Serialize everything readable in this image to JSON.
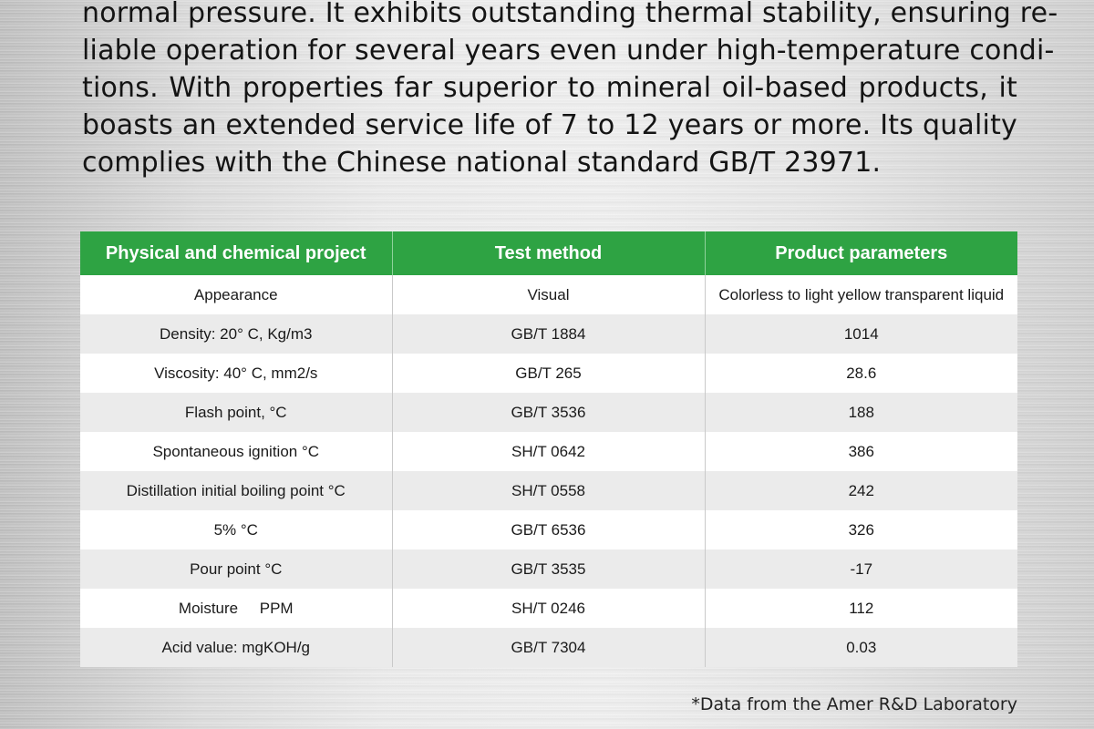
{
  "intro": {
    "lines": [
      "normal pressure. It exhibits outstanding thermal stability, ensuring re-",
      "liable operation for several years even under high-temperature condi-",
      "tions. With properties far superior to mineral oil-based products, it",
      "boasts an extended service life of 7 to 12 years or more. Its quality",
      "complies with the Chinese national standard GB/T 23971."
    ]
  },
  "table": {
    "header_color": "#2ea343",
    "headers": [
      "Physical and chemical project",
      "Test method",
      "Product parameters"
    ],
    "rows": [
      [
        "Appearance",
        "Visual",
        "Colorless to light yellow transparent liquid"
      ],
      [
        "Density: 20° C, Kg/m3",
        "GB/T 1884",
        "1014"
      ],
      [
        "Viscosity: 40° C, mm2/s",
        "GB/T 265",
        "28.6"
      ],
      [
        "Flash point, °C",
        "GB/T 3536",
        "188"
      ],
      [
        "Spontaneous ignition °C",
        "SH/T 0642",
        "386"
      ],
      [
        "Distillation initial boiling point °C",
        "SH/T 0558",
        "242"
      ],
      [
        "5% °C",
        "GB/T 6536",
        "326"
      ],
      [
        "Pour point °C",
        "GB/T 3535",
        "-17"
      ],
      [
        "Moisture     PPM",
        "SH/T 0246",
        "112"
      ],
      [
        "Acid value: mgKOH/g",
        "GB/T 7304",
        "0.03"
      ]
    ]
  },
  "footnote": "*Data from the Amer R&D Laboratory"
}
